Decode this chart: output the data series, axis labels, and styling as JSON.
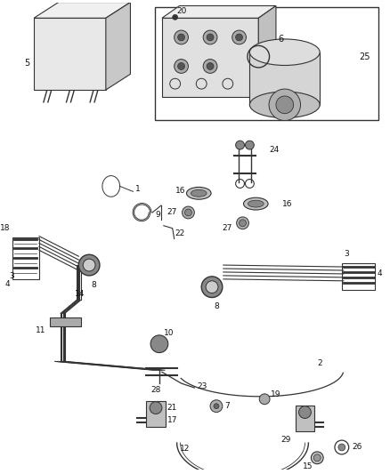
{
  "bg_color": "#ffffff",
  "fig_width": 4.38,
  "fig_height": 5.33,
  "dpi": 100,
  "line_color": "#333333",
  "label_color": "#111111",
  "label_fontsize": 6.5
}
